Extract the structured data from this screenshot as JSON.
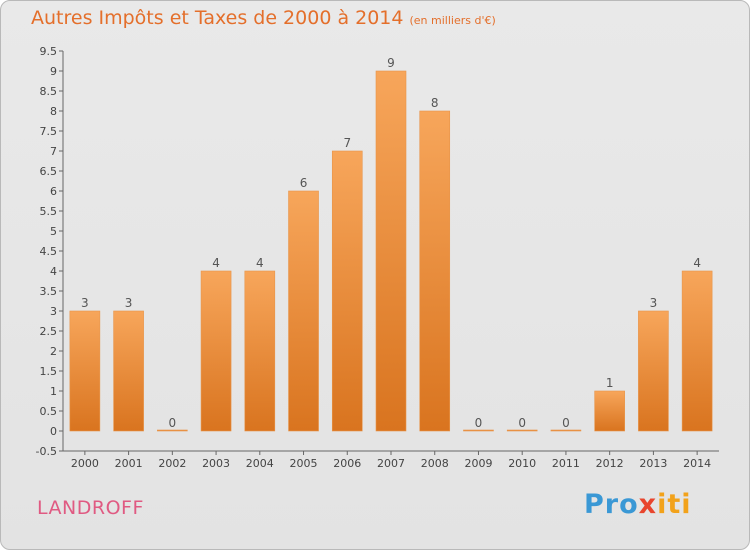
{
  "header": {
    "title": "Autres Impôts et Taxes de 2000 à 2014",
    "subtitle": "(en milliers d'€)"
  },
  "footer": {
    "place": "LANDROFF",
    "logo_parts": [
      "Pro",
      "x",
      "iti"
    ]
  },
  "colors": {
    "title": "#e46f2b",
    "place": "#e05a82",
    "bar_top": "#f7a65b",
    "bar_bottom": "#d9741f",
    "logo_pro": "#3a98d5",
    "logo_x": "#e8452d",
    "logo_iti": "#f2a21a"
  },
  "chart_data": {
    "type": "bar",
    "title": "Autres Impôts et Taxes de 2000 à 2014",
    "subtitle": "(en milliers d'€)",
    "categories": [
      "2000",
      "2001",
      "2002",
      "2003",
      "2004",
      "2005",
      "2006",
      "2007",
      "2008",
      "2009",
      "2010",
      "2011",
      "2012",
      "2013",
      "2014"
    ],
    "values": [
      3,
      3,
      0,
      4,
      4,
      6,
      7,
      9,
      8,
      0,
      0,
      0,
      1,
      3,
      4
    ],
    "data_labels": [
      "3",
      "3",
      "0",
      "4",
      "4",
      "6",
      "7",
      "9",
      "8",
      "0",
      "0",
      "0",
      "1",
      "3",
      "4"
    ],
    "ylim": [
      -0.5,
      9.5
    ],
    "yticks": [
      "9.5",
      "9",
      "8.5",
      "8",
      "7.5",
      "7",
      "6.5",
      "6",
      "5.5",
      "5",
      "4.5",
      "4",
      "3.5",
      "3",
      "2.5",
      "2",
      "1.5",
      "1",
      "0.5",
      "0",
      "-0.5"
    ],
    "ytick_values": [
      9.5,
      9,
      8.5,
      8,
      7.5,
      7,
      6.5,
      6,
      5.5,
      5,
      4.5,
      4,
      3.5,
      3,
      2.5,
      2,
      1.5,
      1,
      0.5,
      0,
      -0.5
    ],
    "grid": false,
    "legend": "none"
  }
}
